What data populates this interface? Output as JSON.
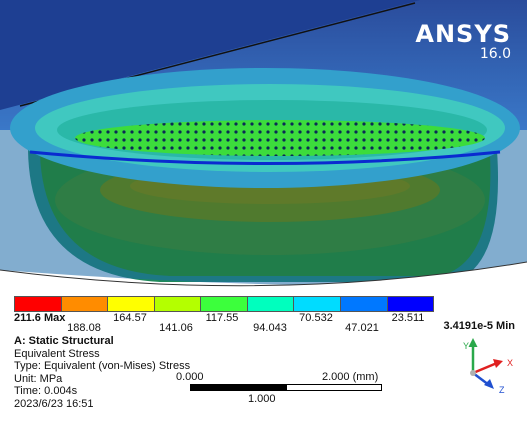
{
  "brand": {
    "name": "ANSYS",
    "version": "16.0"
  },
  "legend": {
    "colors": [
      "#ff0000",
      "#ff8c00",
      "#ffff00",
      "#b4ff00",
      "#3cff3c",
      "#00ffbe",
      "#00dcff",
      "#0078ff",
      "#0000ff"
    ],
    "max_label": "211.6 Max",
    "ticks_top": [
      "164.57",
      "117.55",
      "70.532",
      "23.511"
    ],
    "ticks_bottom": [
      "188.08",
      "141.06",
      "94.043",
      "47.021"
    ],
    "min_label": "3.4191e-5 Min"
  },
  "info": {
    "title": "A: Static Structural",
    "result": "Equivalent Stress",
    "type": "Type: Equivalent (von-Mises) Stress",
    "unit": "Unit: MPa",
    "time": "Time: 0.004s",
    "date": "2023/6/23 16:51"
  },
  "scale": {
    "start": "0.000",
    "end": "2.000 (mm)",
    "mid": "1.000"
  },
  "triad": {
    "y": "Y",
    "x": "X",
    "z": "Z"
  },
  "icons": {
    "axis_triad": "axis-triad-icon",
    "ansys_logo": "ansys-logo"
  }
}
